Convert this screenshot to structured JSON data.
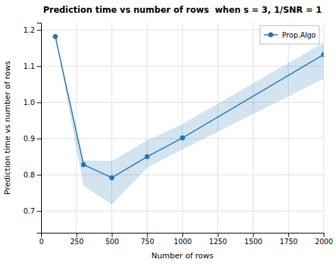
{
  "chart_data": {
    "type": "line",
    "title": "Prediction time vs number of rows  when s = 3, 1/SNR = 1",
    "xlabel": "Number of rows",
    "ylabel": "Prediction time vs number of rows",
    "x": [
      100,
      300,
      500,
      750,
      1000,
      2000
    ],
    "series": [
      {
        "name": "Prop.Algo",
        "marker": "circle",
        "values": [
          1.182,
          0.828,
          0.792,
          0.85,
          0.902,
          1.132
        ],
        "lower": [
          1.182,
          0.77,
          0.718,
          0.82,
          0.87,
          1.065
        ],
        "upper": [
          1.182,
          0.84,
          0.838,
          0.895,
          0.94,
          1.165
        ]
      }
    ],
    "xlim": [
      0,
      2000
    ],
    "ylim": [
      0.64,
      1.22
    ],
    "xticks": [
      0,
      250,
      500,
      750,
      1000,
      1250,
      1500,
      1750,
      2000
    ],
    "yticks": [
      0.7,
      0.8,
      0.9,
      {
        "value": 1,
        "label": "1.0"
      },
      1.1,
      1.2
    ],
    "grid": true,
    "legend": "upper right"
  }
}
